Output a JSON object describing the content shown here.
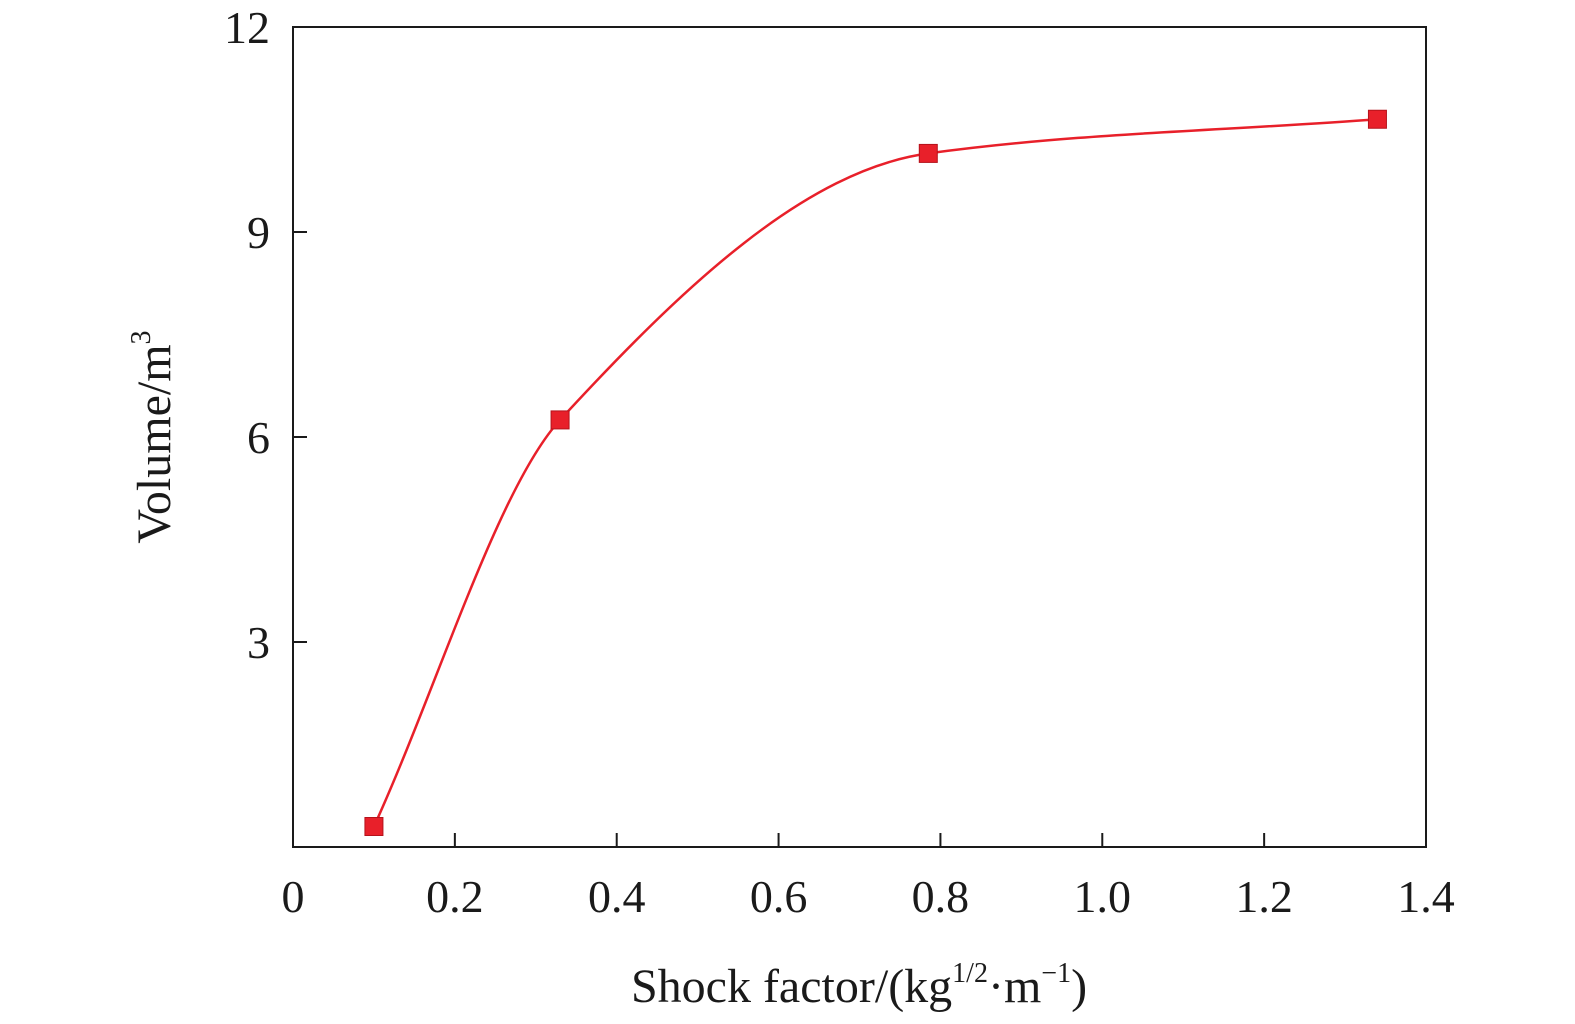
{
  "chart_data": {
    "type": "line",
    "title": "",
    "xlabel": {
      "base": "Shock factor/(kg",
      "sup1": "1/2",
      "mid": "·m",
      "sup2": "−1",
      "end": ")"
    },
    "ylabel": {
      "base": "Volume/m",
      "sup": "3"
    },
    "xlim": [
      0,
      1.4
    ],
    "ylim": [
      0,
      12
    ],
    "x_ticks": [
      0,
      0.2,
      0.4,
      0.6,
      0.8,
      1.0,
      1.2,
      1.4
    ],
    "x_tick_labels": [
      "0",
      "0.2",
      "0.4",
      "0.6",
      "0.8",
      "1.0",
      "1.2",
      "1.4"
    ],
    "y_ticks": [
      3,
      6,
      9,
      12
    ],
    "y_tick_labels": [
      "3",
      "6",
      "9",
      "12"
    ],
    "grid": false,
    "marker": "square",
    "smooth": true,
    "color": "#e8202a",
    "series": [
      {
        "x": [
          0.1,
          0.33,
          0.785,
          1.34
        ],
        "y": [
          0.3,
          6.25,
          10.15,
          10.65
        ]
      }
    ]
  }
}
